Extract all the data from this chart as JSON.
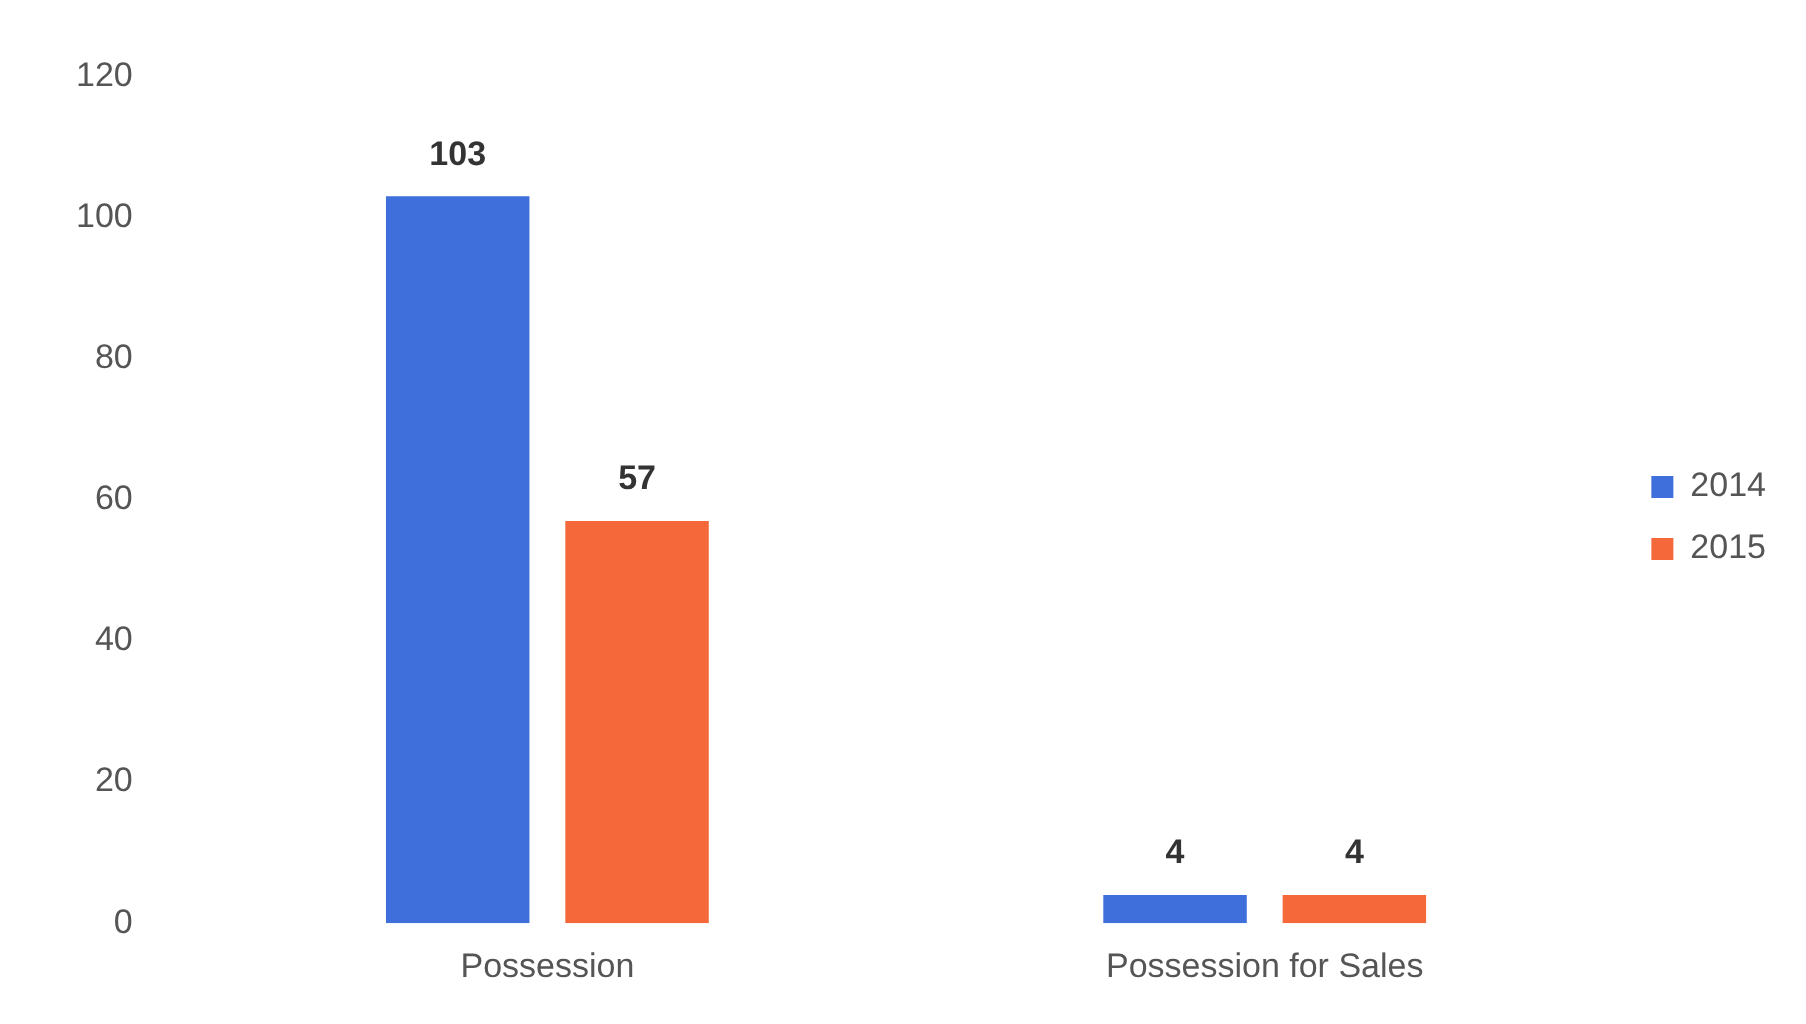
{
  "chart_data": {
    "type": "bar",
    "categories": [
      "Possession",
      "Possession for Sales"
    ],
    "series": [
      {
        "name": "2014",
        "color": "#3e6fdb",
        "values": [
          103,
          4
        ]
      },
      {
        "name": "2015",
        "color": "#f4683a",
        "values": [
          57,
          4
        ]
      }
    ],
    "ylim": [
      0,
      120
    ],
    "yticks": [
      0,
      20,
      40,
      60,
      80,
      100,
      120
    ],
    "grid": false,
    "legend": "right",
    "data_labels": true
  }
}
